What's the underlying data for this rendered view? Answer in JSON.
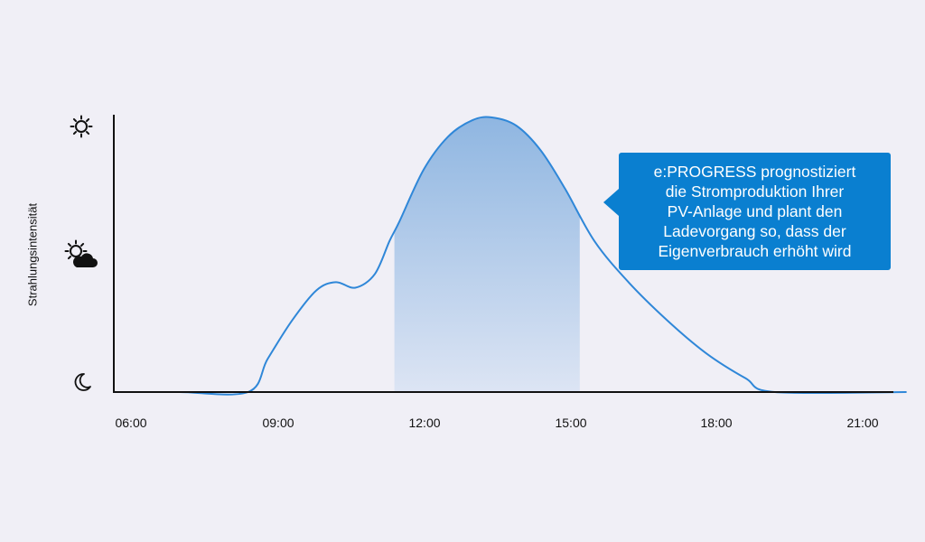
{
  "chart_data": {
    "type": "area",
    "ylabel": "Strahlungsintensität",
    "x_ticks": [
      "06:00",
      "09:00",
      "12:00",
      "15:00",
      "18:00",
      "21:00"
    ],
    "xlim": [
      6,
      21.9
    ],
    "ylim": [
      0,
      1
    ],
    "y_levels": [
      {
        "level": "night",
        "icon": "moon-icon",
        "value": 0
      },
      {
        "level": "partly-cloudy",
        "icon": "sun-behind-cloud-icon",
        "value": 0.5
      },
      {
        "level": "sunny",
        "icon": "sun-icon",
        "value": 1
      }
    ],
    "series": [
      {
        "x": [
          6,
          7,
          8.4,
          8.8,
          9.3,
          9.8,
          10.2,
          10.6,
          11.0,
          11.3,
          11.5,
          12.0,
          12.5,
          13.0,
          13.4,
          13.9,
          14.4,
          14.9,
          15.5,
          16.2,
          17.0,
          17.8,
          18.6,
          19.2,
          21.9
        ],
        "y": [
          0,
          0,
          0,
          0.12,
          0.26,
          0.37,
          0.4,
          0.38,
          0.43,
          0.55,
          0.62,
          0.81,
          0.93,
          0.99,
          1.0,
          0.97,
          0.88,
          0.74,
          0.55,
          0.4,
          0.26,
          0.14,
          0.05,
          0,
          0
        ]
      }
    ],
    "highlight_range": [
      11.4,
      15.2
    ],
    "colors": {
      "line": "#2f87d8",
      "fill_top": "#8fb6e1",
      "fill_bottom": "#dde5f4",
      "axis": "#111111",
      "callout": "#0a7fd0",
      "background": "#f0eff6"
    }
  },
  "callout": {
    "text": "e:PROGRESS prognostiziert\ndie Stromproduktion Ihrer\nPV-Anlage und plant den\nLadevorgang so, dass der\nEigenverbrauch erhöht wird"
  }
}
